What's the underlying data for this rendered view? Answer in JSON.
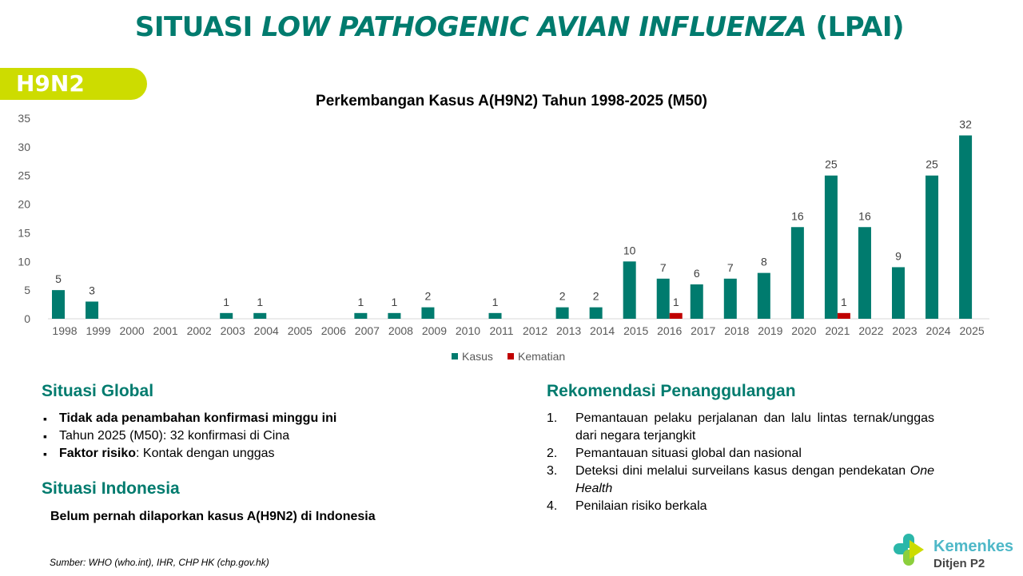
{
  "title": {
    "prefix": "SITUASI ",
    "italic": "LOW PATHOGENIC AVIAN INFLUENZA",
    "suffix": " (LPAI)"
  },
  "tag": "H9N2",
  "chart_data": {
    "type": "bar",
    "title": "Perkembangan Kasus A(H9N2) Tahun 1998-2025 (M50)",
    "categories": [
      "1998",
      "1999",
      "2000",
      "2001",
      "2002",
      "2003",
      "2004",
      "2005",
      "2006",
      "2007",
      "2008",
      "2009",
      "2010",
      "2011",
      "2012",
      "2013",
      "2014",
      "2015",
      "2016",
      "2017",
      "2018",
      "2019",
      "2020",
      "2021",
      "2022",
      "2023",
      "2024",
      "2025"
    ],
    "series": [
      {
        "name": "Kasus",
        "color": "#007b6e",
        "values": [
          5,
          3,
          0,
          0,
          0,
          1,
          1,
          0,
          0,
          1,
          1,
          2,
          0,
          1,
          0,
          2,
          2,
          10,
          7,
          6,
          7,
          8,
          16,
          25,
          16,
          9,
          25,
          32
        ]
      },
      {
        "name": "Kematian",
        "color": "#c00000",
        "values": [
          0,
          0,
          0,
          0,
          0,
          0,
          0,
          0,
          0,
          0,
          0,
          0,
          0,
          0,
          0,
          0,
          0,
          0,
          1,
          0,
          0,
          0,
          0,
          1,
          0,
          0,
          0,
          0
        ]
      }
    ],
    "yticks": [
      "0",
      "5",
      "10",
      "15",
      "20",
      "25",
      "30",
      "35"
    ],
    "ylim": [
      0,
      35
    ],
    "grid": false,
    "legend": "bottom"
  },
  "global": {
    "heading": "Situasi Global",
    "items": [
      {
        "bold": "Tidak ada penambahan konfirmasi minggu ini",
        "text": ""
      },
      {
        "bold": "",
        "text": "Tahun 2025 (M50): 32 konfirmasi di Cina"
      },
      {
        "bold": "Faktor risiko",
        "text": ": Kontak dengan unggas"
      }
    ]
  },
  "indonesia": {
    "heading": "Situasi Indonesia",
    "text": "Belum pernah dilaporkan kasus A(H9N2) di Indonesia"
  },
  "rekomendasi": {
    "heading": "Rekomendasi Penanggulangan",
    "items": [
      {
        "n": "1.",
        "text": "Pemantauan pelaku perjalanan dan lalu lintas ternak/unggas dari negara terjangkit",
        "italic": ""
      },
      {
        "n": "2.",
        "text": "Pemantauan situasi global dan nasional",
        "italic": ""
      },
      {
        "n": "3.",
        "text": "Deteksi dini melalui surveilans kasus dengan pendekatan ",
        "italic": "One Health"
      },
      {
        "n": "4.",
        "text": "Penilaian risiko berkala",
        "italic": ""
      }
    ]
  },
  "source": "Sumber: WHO (who.int), IHR, CHP HK (chp.gov.hk)",
  "logo": {
    "name": "Kemenkes",
    "sub": "Ditjen P2"
  }
}
